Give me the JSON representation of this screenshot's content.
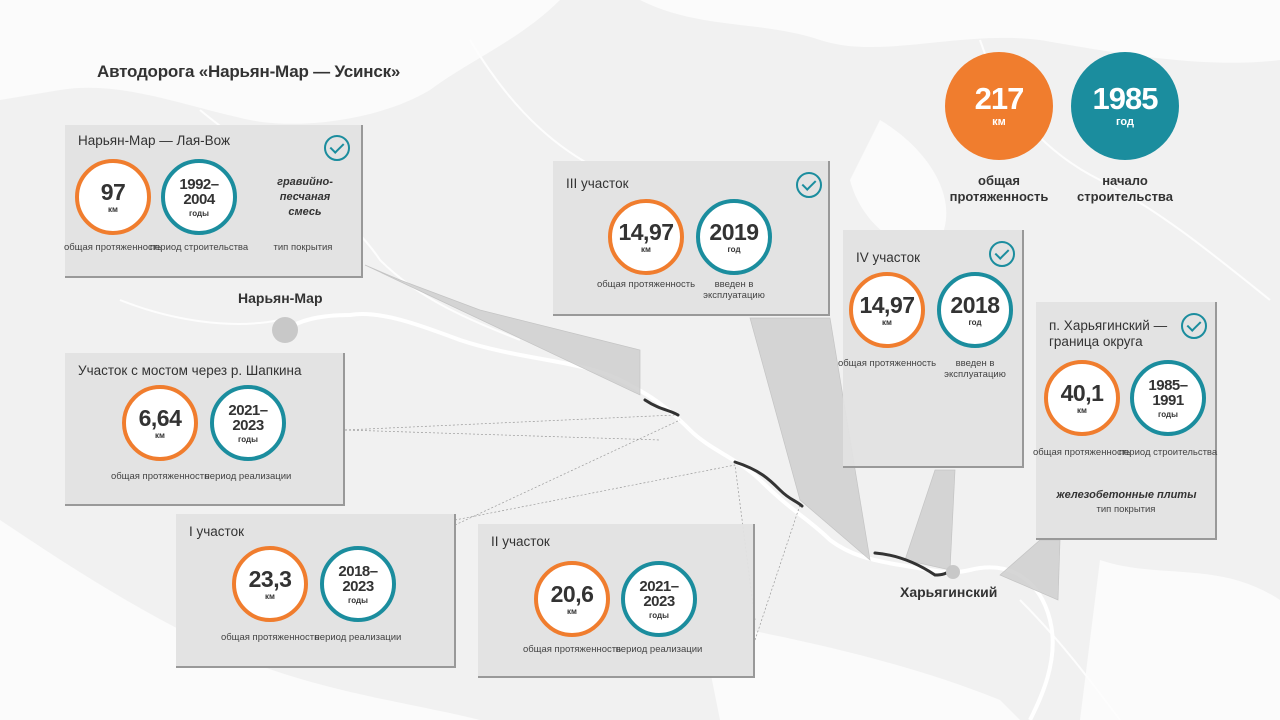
{
  "title": "Автодорога «Нарьян-Мар — Усинск»",
  "colors": {
    "orange": "#f07d2e",
    "teal": "#1b8d9e",
    "road": "#333333"
  },
  "summary": {
    "length": {
      "value": "217",
      "unit": "км",
      "caption": "общая протяженность"
    },
    "start": {
      "value": "1985",
      "unit": "год",
      "caption": "начало строительства"
    }
  },
  "cities": {
    "naryan_mar": "Нарьян-Мар",
    "kharyaginsky": "Харьягинский"
  },
  "sections": {
    "s1": {
      "name": "Нарьян-Мар — Лая-Вож",
      "length": "97",
      "length_unit": "км",
      "length_caption": "общая протяженность",
      "period": "1992–\n2004",
      "period_unit": "годы",
      "period_caption": "период строительства",
      "surface": "гравийно-\nпесчаная\nсмесь",
      "surface_caption": "тип покрытия"
    },
    "s2": {
      "name": "Участок с мостом через р. Шапкина",
      "length": "6,64",
      "length_unit": "км",
      "length_caption": "общая протяженность",
      "period": "2021–\n2023",
      "period_unit": "годы",
      "period_caption": "период реализации"
    },
    "s3": {
      "name": "I участок",
      "length": "23,3",
      "length_unit": "км",
      "length_caption": "общая протяженность",
      "period": "2018–\n2023",
      "period_unit": "годы",
      "period_caption": "период реализации"
    },
    "s4": {
      "name": "II участок",
      "length": "20,6",
      "length_unit": "км",
      "length_caption": "общая протяженность",
      "period": "2021–\n2023",
      "period_unit": "годы",
      "period_caption": "период реализации"
    },
    "s5": {
      "name": "III участок",
      "length": "14,97",
      "length_unit": "км",
      "length_caption": "общая протяженность",
      "year": "2019",
      "year_unit": "год",
      "year_caption": "введен в эксплуатацию"
    },
    "s6": {
      "name": "IV участок",
      "length": "14,97",
      "length_unit": "км",
      "length_caption": "общая протяженность",
      "year": "2018",
      "year_unit": "год",
      "year_caption": "введен в эксплуатацию"
    },
    "s7": {
      "name": "п. Харьягинский — граница округа",
      "length": "40,1",
      "length_unit": "км",
      "length_caption": "общая протяженность",
      "period": "1985–\n1991",
      "period_unit": "годы",
      "period_caption": "период строительства",
      "surface": "железобетонные плиты",
      "surface_caption": "тип покрытия"
    }
  }
}
